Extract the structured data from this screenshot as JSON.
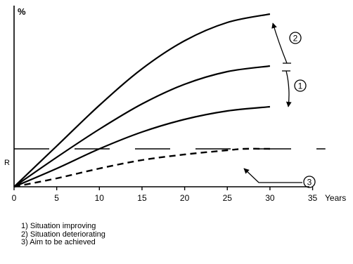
{
  "chart_data": {
    "type": "line",
    "ylabel": "%",
    "xlabel": "Years",
    "xlim": [
      0,
      37
    ],
    "x_ticks": [
      0,
      5,
      10,
      15,
      20,
      25,
      30,
      35
    ],
    "y_reference_label": "R",
    "grid": false,
    "series": [
      {
        "x": [
          0,
          5,
          10,
          15,
          20,
          25,
          30
        ],
        "values": [
          0,
          29,
          58,
          84,
          104,
          117,
          123
        ],
        "style": "solid"
      },
      {
        "x": [
          0,
          5,
          10,
          15,
          20,
          25,
          30
        ],
        "values": [
          0,
          21,
          41,
          59,
          73,
          82,
          86
        ],
        "style": "solid"
      },
      {
        "x": [
          0,
          5,
          10,
          15,
          20,
          25,
          30
        ],
        "values": [
          0,
          13,
          27,
          39,
          48,
          54,
          57
        ],
        "style": "solid"
      },
      {
        "x": [
          0,
          5,
          10,
          15,
          20,
          25,
          27,
          30
        ],
        "values": [
          0,
          6,
          13,
          19,
          23,
          26,
          27,
          27
        ],
        "style": "dashed"
      }
    ],
    "reference_line": {
      "label": "R",
      "value": 27,
      "style": "long-dash"
    },
    "annotations": [
      {
        "label": "①",
        "marks": "arrow from middle curve down to lower curve at year 30"
      },
      {
        "label": "②",
        "marks": "arrow from middle curve up to upper curve at year 30"
      },
      {
        "label": "③",
        "marks": "leader pointing to dashed curve near year 27"
      }
    ]
  },
  "notes": [
    "1) Situation improving",
    "2) Situation deteriorating",
    "3) Aim to be achieved"
  ]
}
